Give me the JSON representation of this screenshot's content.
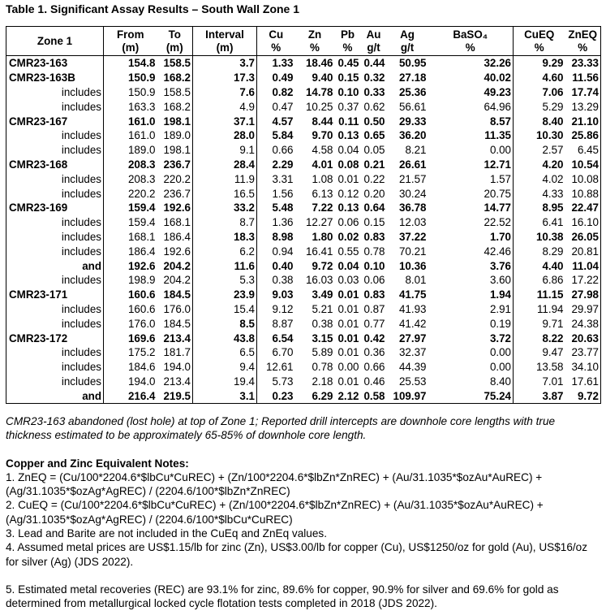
{
  "title": "Table 1. Significant Assay Results – South Wall Zone 1",
  "headers": [
    [
      "Zone 1",
      ""
    ],
    [
      "From",
      "(m)"
    ],
    [
      "To",
      "(m)"
    ],
    [
      "Interval",
      "(m)"
    ],
    [
      "Cu",
      "%"
    ],
    [
      "Zn",
      "%"
    ],
    [
      "Pb",
      "%"
    ],
    [
      "Au",
      "g/t"
    ],
    [
      "Ag",
      "g/t"
    ],
    [
      "BaSO₄",
      "%"
    ],
    [
      "CuEQ",
      "%"
    ],
    [
      "ZnEQ",
      "%"
    ]
  ],
  "rows": [
    {
      "type": "hole",
      "b": "all",
      "c": [
        "CMR23-163",
        "154.8",
        "158.5",
        "3.7",
        "1.33",
        "18.46",
        "0.45",
        "0.44",
        "50.95",
        "32.26",
        "9.29",
        "23.33"
      ]
    },
    {
      "type": "hole",
      "b": "all",
      "c": [
        "CMR23-163B",
        "150.9",
        "168.2",
        "17.3",
        "0.49",
        "9.40",
        "0.15",
        "0.32",
        "27.18",
        "40.02",
        "4.60",
        "11.56"
      ]
    },
    {
      "type": "sub",
      "b": "data",
      "c": [
        "includes",
        "150.9",
        "158.5",
        "7.6",
        "0.82",
        "14.78",
        "0.10",
        "0.33",
        "25.36",
        "49.23",
        "7.06",
        "17.74"
      ]
    },
    {
      "type": "sub",
      "b": "none",
      "c": [
        "includes",
        "163.3",
        "168.2",
        "4.9",
        "0.47",
        "10.25",
        "0.37",
        "0.62",
        "56.61",
        "64.96",
        "5.29",
        "13.29"
      ]
    },
    {
      "type": "hole",
      "b": "all",
      "c": [
        "CMR23-167",
        "161.0",
        "198.1",
        "37.1",
        "4.57",
        "8.44",
        "0.11",
        "0.50",
        "29.33",
        "8.57",
        "8.40",
        "21.10"
      ]
    },
    {
      "type": "sub",
      "b": "data",
      "c": [
        "includes",
        "161.0",
        "189.0",
        "28.0",
        "5.84",
        "9.70",
        "0.13",
        "0.65",
        "36.20",
        "11.35",
        "10.30",
        "25.86"
      ]
    },
    {
      "type": "sub",
      "b": "none",
      "c": [
        "includes",
        "189.0",
        "198.1",
        "9.1",
        "0.66",
        "4.58",
        "0.04",
        "0.05",
        "8.21",
        "0.00",
        "2.57",
        "6.45"
      ]
    },
    {
      "type": "hole",
      "b": "all",
      "c": [
        "CMR23-168",
        "208.3",
        "236.7",
        "28.4",
        "2.29",
        "4.01",
        "0.08",
        "0.21",
        "26.61",
        "12.71",
        "4.20",
        "10.54"
      ]
    },
    {
      "type": "sub",
      "b": "none",
      "c": [
        "includes",
        "208.3",
        "220.2",
        "11.9",
        "3.31",
        "1.08",
        "0.01",
        "0.22",
        "21.57",
        "1.57",
        "4.02",
        "10.08"
      ]
    },
    {
      "type": "sub",
      "b": "none",
      "c": [
        "includes",
        "220.2",
        "236.7",
        "16.5",
        "1.56",
        "6.13",
        "0.12",
        "0.20",
        "30.24",
        "20.75",
        "4.33",
        "10.88"
      ]
    },
    {
      "type": "hole",
      "b": "all",
      "c": [
        "CMR23-169",
        "159.4",
        "192.6",
        "33.2",
        "5.48",
        "7.22",
        "0.13",
        "0.64",
        "36.78",
        "14.77",
        "8.95",
        "22.47"
      ]
    },
    {
      "type": "sub",
      "b": "none",
      "c": [
        "includes",
        "159.4",
        "168.1",
        "8.7",
        "1.36",
        "12.27",
        "0.06",
        "0.15",
        "12.03",
        "22.52",
        "6.41",
        "16.10"
      ]
    },
    {
      "type": "sub",
      "b": "data",
      "c": [
        "includes",
        "168.1",
        "186.4",
        "18.3",
        "8.98",
        "1.80",
        "0.02",
        "0.83",
        "37.22",
        "1.70",
        "10.38",
        "26.05"
      ]
    },
    {
      "type": "sub",
      "b": "none",
      "c": [
        "includes",
        "186.4",
        "192.6",
        "6.2",
        "0.94",
        "16.41",
        "0.55",
        "0.78",
        "70.21",
        "42.46",
        "8.29",
        "20.81"
      ]
    },
    {
      "type": "sub",
      "b": "all",
      "c": [
        "and",
        "192.6",
        "204.2",
        "11.6",
        "0.40",
        "9.72",
        "0.04",
        "0.10",
        "10.36",
        "3.76",
        "4.40",
        "11.04"
      ]
    },
    {
      "type": "sub",
      "b": "none",
      "c": [
        "includes",
        "198.9",
        "204.2",
        "5.3",
        "0.38",
        "16.03",
        "0.03",
        "0.06",
        "8.01",
        "3.60",
        "6.86",
        "17.22"
      ]
    },
    {
      "type": "hole",
      "b": "all",
      "c": [
        "CMR23-171",
        "160.6",
        "184.5",
        "23.9",
        "9.03",
        "3.49",
        "0.01",
        "0.83",
        "41.75",
        "1.94",
        "11.15",
        "27.98"
      ]
    },
    {
      "type": "sub",
      "b": "none",
      "c": [
        "includes",
        "160.6",
        "176.0",
        "15.4",
        "9.12",
        "5.21",
        "0.01",
        "0.87",
        "41.93",
        "2.91",
        "11.94",
        "29.97"
      ]
    },
    {
      "type": "sub",
      "b": "interval",
      "c": [
        "includes",
        "176.0",
        "184.5",
        "8.5",
        "8.87",
        "0.38",
        "0.01",
        "0.77",
        "41.42",
        "0.19",
        "9.71",
        "24.38"
      ]
    },
    {
      "type": "hole",
      "b": "all",
      "c": [
        "CMR23-172",
        "169.6",
        "213.4",
        "43.8",
        "6.54",
        "3.15",
        "0.01",
        "0.42",
        "27.97",
        "3.72",
        "8.22",
        "20.63"
      ]
    },
    {
      "type": "sub",
      "b": "none",
      "c": [
        "includes",
        "175.2",
        "181.7",
        "6.5",
        "6.70",
        "5.89",
        "0.01",
        "0.36",
        "32.37",
        "0.00",
        "9.47",
        "23.77"
      ]
    },
    {
      "type": "sub",
      "b": "none",
      "c": [
        "includes",
        "184.6",
        "194.0",
        "9.4",
        "12.61",
        "0.78",
        "0.00",
        "0.66",
        "44.39",
        "0.00",
        "13.58",
        "34.10"
      ]
    },
    {
      "type": "sub",
      "b": "none",
      "c": [
        "includes",
        "194.0",
        "213.4",
        "19.4",
        "5.73",
        "2.18",
        "0.01",
        "0.46",
        "25.53",
        "8.40",
        "7.01",
        "17.61"
      ]
    },
    {
      "type": "sub",
      "b": "all",
      "c": [
        "and",
        "216.4",
        "219.5",
        "3.1",
        "0.23",
        "6.29",
        "2.12",
        "0.58",
        "109.97",
        "75.24",
        "3.87",
        "9.72"
      ]
    }
  ],
  "footnote": "CMR23-163 abandoned (lost hole) at top of Zone 1; Reported drill intercepts are downhole core lengths with true thickness estimated to be approximately 65-85% of downhole core length.",
  "notes_heading": "Copper and Zinc Equivalent Notes:",
  "notes": [
    "1. ZnEQ = (Cu/100*2204.6*$lbCu*CuREC) + (Zn/100*2204.6*$lbZn*ZnREC) + (Au/31.1035*$ozAu*AuREC) + (Ag/31.1035*$ozAg*AgREC) / (2204.6/100*$lbZn*ZnREC)",
    "2. CuEQ = (Cu/100*2204.6*$lbCu*CuREC) + (Zn/100*2204.6*$lbZn*ZnREC) + (Au/31.1035*$ozAu*AuREC) + (Ag/31.1035*$ozAg*AgREC) / (2204.6/100*$lbCu*CuREC)",
    "3. Lead and Barite are not included in the CuEq and ZnEq values.",
    "4. Assumed metal prices are US$1.15/lb for zinc (Zn), US$3.00/lb for copper (Cu), US$1250/oz for gold (Au), US$16/oz for silver (Ag) (JDS 2022).",
    "5. Estimated metal recoveries (REC) are 93.1% for zinc, 89.6% for copper, 90.9% for silver and 69.6% for gold as determined from metallurgical locked cycle flotation tests completed in 2018 (JDS 2022)."
  ]
}
